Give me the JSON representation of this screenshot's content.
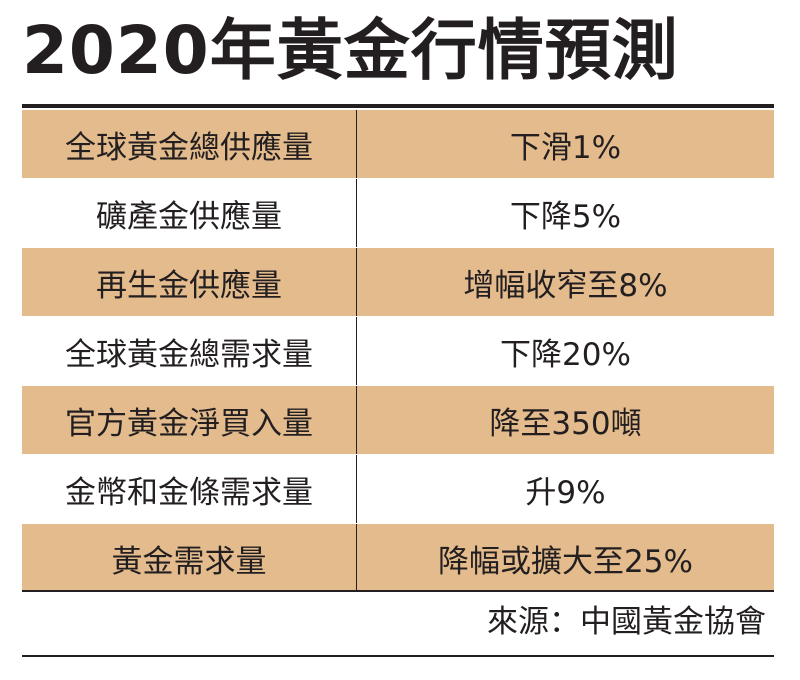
{
  "title": "2020年黃金行情預測",
  "colors": {
    "shaded_row": "#e3bb8d",
    "text": "#231f20",
    "background": "#ffffff"
  },
  "rows": [
    {
      "label": "全球黃金總供應量",
      "value": "下滑1%",
      "shaded": true
    },
    {
      "label": "礦產金供應量",
      "value": "下降5%",
      "shaded": false
    },
    {
      "label": "再生金供應量",
      "value": "增幅收窄至8%",
      "shaded": true
    },
    {
      "label": "全球黃金總需求量",
      "value": "下降20%",
      "shaded": false
    },
    {
      "label": "官方黃金淨買入量",
      "value": "降至350噸",
      "shaded": true
    },
    {
      "label": "金幣和金條需求量",
      "value": "升9%",
      "shaded": false
    },
    {
      "label": "黃金需求量",
      "value": "降幅或擴大至25%",
      "shaded": true
    }
  ],
  "source": "來源：中國黃金協會"
}
